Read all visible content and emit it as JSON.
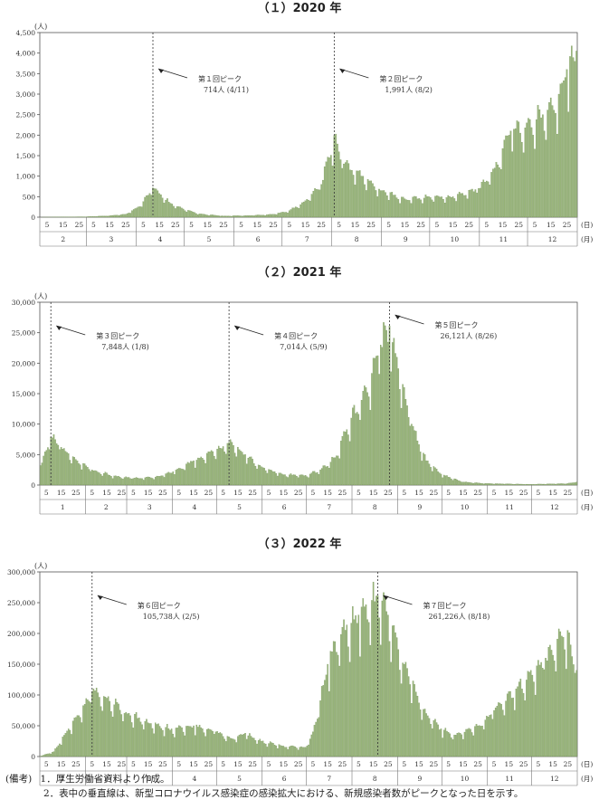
{
  "notes": {
    "label": "(備考)",
    "items": [
      "1．厚生労働省資料より作成。",
      "2．表中の垂直線は、新型コロナウイルス感染症の感染拡大における、新規感染者数がピークとなった日を示す。"
    ]
  },
  "chart_data": [
    {
      "type": "bar",
      "title": "（１）2020 年",
      "unit_label": "(人)",
      "x_day_label": "(日)",
      "x_month_label": "(月)",
      "ylim": [
        0,
        4500
      ],
      "yticks": [
        "0",
        "500",
        "1,000",
        "1,500",
        "2,000",
        "2,500",
        "3,000",
        "3,500",
        "4,000",
        "4,500"
      ],
      "day_ticks": [
        "5",
        "15",
        "25"
      ],
      "months": [
        "2",
        "3",
        "4",
        "5",
        "6",
        "7",
        "8",
        "9",
        "10",
        "11",
        "12"
      ],
      "month_days": [
        29,
        31,
        30,
        31,
        30,
        31,
        31,
        30,
        31,
        30,
        31
      ],
      "bar_color": "#9bb77c",
      "keyframes": [
        {
          "m": 0,
          "d": 1,
          "v": 0
        },
        {
          "m": 0,
          "d": 20,
          "v": 8
        },
        {
          "m": 1,
          "d": 1,
          "v": 12
        },
        {
          "m": 1,
          "d": 15,
          "v": 35
        },
        {
          "m": 1,
          "d": 25,
          "v": 70
        },
        {
          "m": 2,
          "d": 1,
          "v": 230
        },
        {
          "m": 2,
          "d": 5,
          "v": 380
        },
        {
          "m": 2,
          "d": 11,
          "v": 714
        },
        {
          "m": 2,
          "d": 16,
          "v": 550
        },
        {
          "m": 2,
          "d": 22,
          "v": 340
        },
        {
          "m": 2,
          "d": 30,
          "v": 200
        },
        {
          "m": 3,
          "d": 10,
          "v": 80
        },
        {
          "m": 3,
          "d": 25,
          "v": 30
        },
        {
          "m": 4,
          "d": 10,
          "v": 40
        },
        {
          "m": 4,
          "d": 25,
          "v": 70
        },
        {
          "m": 5,
          "d": 5,
          "v": 160
        },
        {
          "m": 5,
          "d": 15,
          "v": 400
        },
        {
          "m": 5,
          "d": 25,
          "v": 800
        },
        {
          "m": 6,
          "d": 2,
          "v": 1991
        },
        {
          "m": 6,
          "d": 8,
          "v": 1300
        },
        {
          "m": 6,
          "d": 20,
          "v": 1000
        },
        {
          "m": 6,
          "d": 31,
          "v": 650
        },
        {
          "m": 7,
          "d": 15,
          "v": 450
        },
        {
          "m": 7,
          "d": 30,
          "v": 500
        },
        {
          "m": 8,
          "d": 15,
          "v": 500
        },
        {
          "m": 8,
          "d": 31,
          "v": 700
        },
        {
          "m": 9,
          "d": 10,
          "v": 1200
        },
        {
          "m": 9,
          "d": 20,
          "v": 2100
        },
        {
          "m": 9,
          "d": 30,
          "v": 2300
        },
        {
          "m": 10,
          "d": 10,
          "v": 2500
        },
        {
          "m": 10,
          "d": 20,
          "v": 3000
        },
        {
          "m": 10,
          "d": 25,
          "v": 3600
        },
        {
          "m": 10,
          "d": 31,
          "v": 4050
        }
      ],
      "peaks": [
        {
          "m": 2,
          "d": 11,
          "label": "第１回ピーク",
          "value": "714人 (4/11)"
        },
        {
          "m": 6,
          "d": 2,
          "label": "第２回ピーク",
          "value": "1,991人 (8/2)"
        }
      ]
    },
    {
      "type": "bar",
      "title": "（２）2021 年",
      "unit_label": "(人)",
      "x_day_label": "(日)",
      "x_month_label": "(月)",
      "ylim": [
        0,
        30000
      ],
      "yticks": [
        "0",
        "5,000",
        "10,000",
        "15,000",
        "20,000",
        "25,000",
        "30,000"
      ],
      "day_ticks": [
        "5",
        "15",
        "25"
      ],
      "months": [
        "1",
        "2",
        "3",
        "4",
        "5",
        "6",
        "7",
        "8",
        "9",
        "10",
        "11",
        "12"
      ],
      "month_days": [
        31,
        28,
        31,
        30,
        31,
        30,
        31,
        31,
        30,
        31,
        30,
        31
      ],
      "bar_color": "#9bb77c",
      "keyframes": [
        {
          "m": 0,
          "d": 1,
          "v": 3200
        },
        {
          "m": 0,
          "d": 8,
          "v": 7848
        },
        {
          "m": 0,
          "d": 15,
          "v": 6200
        },
        {
          "m": 0,
          "d": 25,
          "v": 4200
        },
        {
          "m": 1,
          "d": 5,
          "v": 2500
        },
        {
          "m": 1,
          "d": 20,
          "v": 1500
        },
        {
          "m": 2,
          "d": 5,
          "v": 1100
        },
        {
          "m": 2,
          "d": 20,
          "v": 1300
        },
        {
          "m": 3,
          "d": 1,
          "v": 2200
        },
        {
          "m": 3,
          "d": 15,
          "v": 4000
        },
        {
          "m": 3,
          "d": 28,
          "v": 5500
        },
        {
          "m": 4,
          "d": 9,
          "v": 7014
        },
        {
          "m": 4,
          "d": 20,
          "v": 5000
        },
        {
          "m": 4,
          "d": 31,
          "v": 3000
        },
        {
          "m": 5,
          "d": 15,
          "v": 1700
        },
        {
          "m": 5,
          "d": 30,
          "v": 1600
        },
        {
          "m": 6,
          "d": 10,
          "v": 2500
        },
        {
          "m": 6,
          "d": 20,
          "v": 4500
        },
        {
          "m": 6,
          "d": 31,
          "v": 11000
        },
        {
          "m": 7,
          "d": 10,
          "v": 16000
        },
        {
          "m": 7,
          "d": 20,
          "v": 23000
        },
        {
          "m": 7,
          "d": 26,
          "v": 26121
        },
        {
          "m": 7,
          "d": 31,
          "v": 21000
        },
        {
          "m": 8,
          "d": 10,
          "v": 10000
        },
        {
          "m": 8,
          "d": 20,
          "v": 4000
        },
        {
          "m": 8,
          "d": 30,
          "v": 1800
        },
        {
          "m": 9,
          "d": 15,
          "v": 500
        },
        {
          "m": 9,
          "d": 31,
          "v": 250
        },
        {
          "m": 10,
          "d": 30,
          "v": 120
        },
        {
          "m": 11,
          "d": 25,
          "v": 250
        },
        {
          "m": 11,
          "d": 31,
          "v": 500
        }
      ],
      "peaks": [
        {
          "m": 0,
          "d": 8,
          "label": "第３回ピーク",
          "value": "7,848人 (1/8)"
        },
        {
          "m": 4,
          "d": 9,
          "label": "第４回ピーク",
          "value": "7,014人 (5/9)"
        },
        {
          "m": 7,
          "d": 26,
          "label": "第５回ピーク",
          "value": "26,121人 (8/26)"
        }
      ]
    },
    {
      "type": "bar",
      "title": "（３）2022 年",
      "unit_label": "(人)",
      "x_day_label": "(日)",
      "x_month_label": "(月)",
      "ylim": [
        0,
        300000
      ],
      "yticks": [
        "0",
        "50,000",
        "100,000",
        "150,000",
        "200,000",
        "250,000",
        "300,000"
      ],
      "day_ticks": [
        "5",
        "15",
        "25"
      ],
      "months": [
        "1",
        "2",
        "3",
        "4",
        "5",
        "6",
        "7",
        "8",
        "9",
        "10",
        "11",
        "12"
      ],
      "month_days": [
        31,
        28,
        31,
        30,
        31,
        30,
        31,
        31,
        30,
        31,
        30,
        31
      ],
      "bar_color": "#9bb77c",
      "keyframes": [
        {
          "m": 0,
          "d": 1,
          "v": 500
        },
        {
          "m": 0,
          "d": 10,
          "v": 8000
        },
        {
          "m": 0,
          "d": 20,
          "v": 45000
        },
        {
          "m": 0,
          "d": 31,
          "v": 85000
        },
        {
          "m": 1,
          "d": 5,
          "v": 105738
        },
        {
          "m": 1,
          "d": 15,
          "v": 95000
        },
        {
          "m": 1,
          "d": 28,
          "v": 72000
        },
        {
          "m": 2,
          "d": 15,
          "v": 55000
        },
        {
          "m": 2,
          "d": 31,
          "v": 45000
        },
        {
          "m": 3,
          "d": 15,
          "v": 50000
        },
        {
          "m": 3,
          "d": 30,
          "v": 40000
        },
        {
          "m": 4,
          "d": 10,
          "v": 30000
        },
        {
          "m": 4,
          "d": 20,
          "v": 38000
        },
        {
          "m": 4,
          "d": 31,
          "v": 25000
        },
        {
          "m": 5,
          "d": 15,
          "v": 17000
        },
        {
          "m": 5,
          "d": 30,
          "v": 15000
        },
        {
          "m": 6,
          "d": 5,
          "v": 40000
        },
        {
          "m": 6,
          "d": 15,
          "v": 150000
        },
        {
          "m": 6,
          "d": 25,
          "v": 210000
        },
        {
          "m": 7,
          "d": 5,
          "v": 230000
        },
        {
          "m": 7,
          "d": 18,
          "v": 261226
        },
        {
          "m": 7,
          "d": 25,
          "v": 230000
        },
        {
          "m": 8,
          "d": 5,
          "v": 150000
        },
        {
          "m": 8,
          "d": 20,
          "v": 70000
        },
        {
          "m": 8,
          "d": 30,
          "v": 45000
        },
        {
          "m": 9,
          "d": 10,
          "v": 35000
        },
        {
          "m": 9,
          "d": 25,
          "v": 50000
        },
        {
          "m": 10,
          "d": 5,
          "v": 75000
        },
        {
          "m": 10,
          "d": 20,
          "v": 110000
        },
        {
          "m": 10,
          "d": 30,
          "v": 140000
        },
        {
          "m": 11,
          "d": 10,
          "v": 160000
        },
        {
          "m": 11,
          "d": 25,
          "v": 205000
        },
        {
          "m": 11,
          "d": 31,
          "v": 140000
        }
      ],
      "peaks": [
        {
          "m": 1,
          "d": 5,
          "label": "第６回ピーク",
          "value": "105,738人 (2/5)"
        },
        {
          "m": 7,
          "d": 18,
          "label": "第７回ピーク",
          "value": "261,226人 (8/18)"
        }
      ]
    }
  ]
}
